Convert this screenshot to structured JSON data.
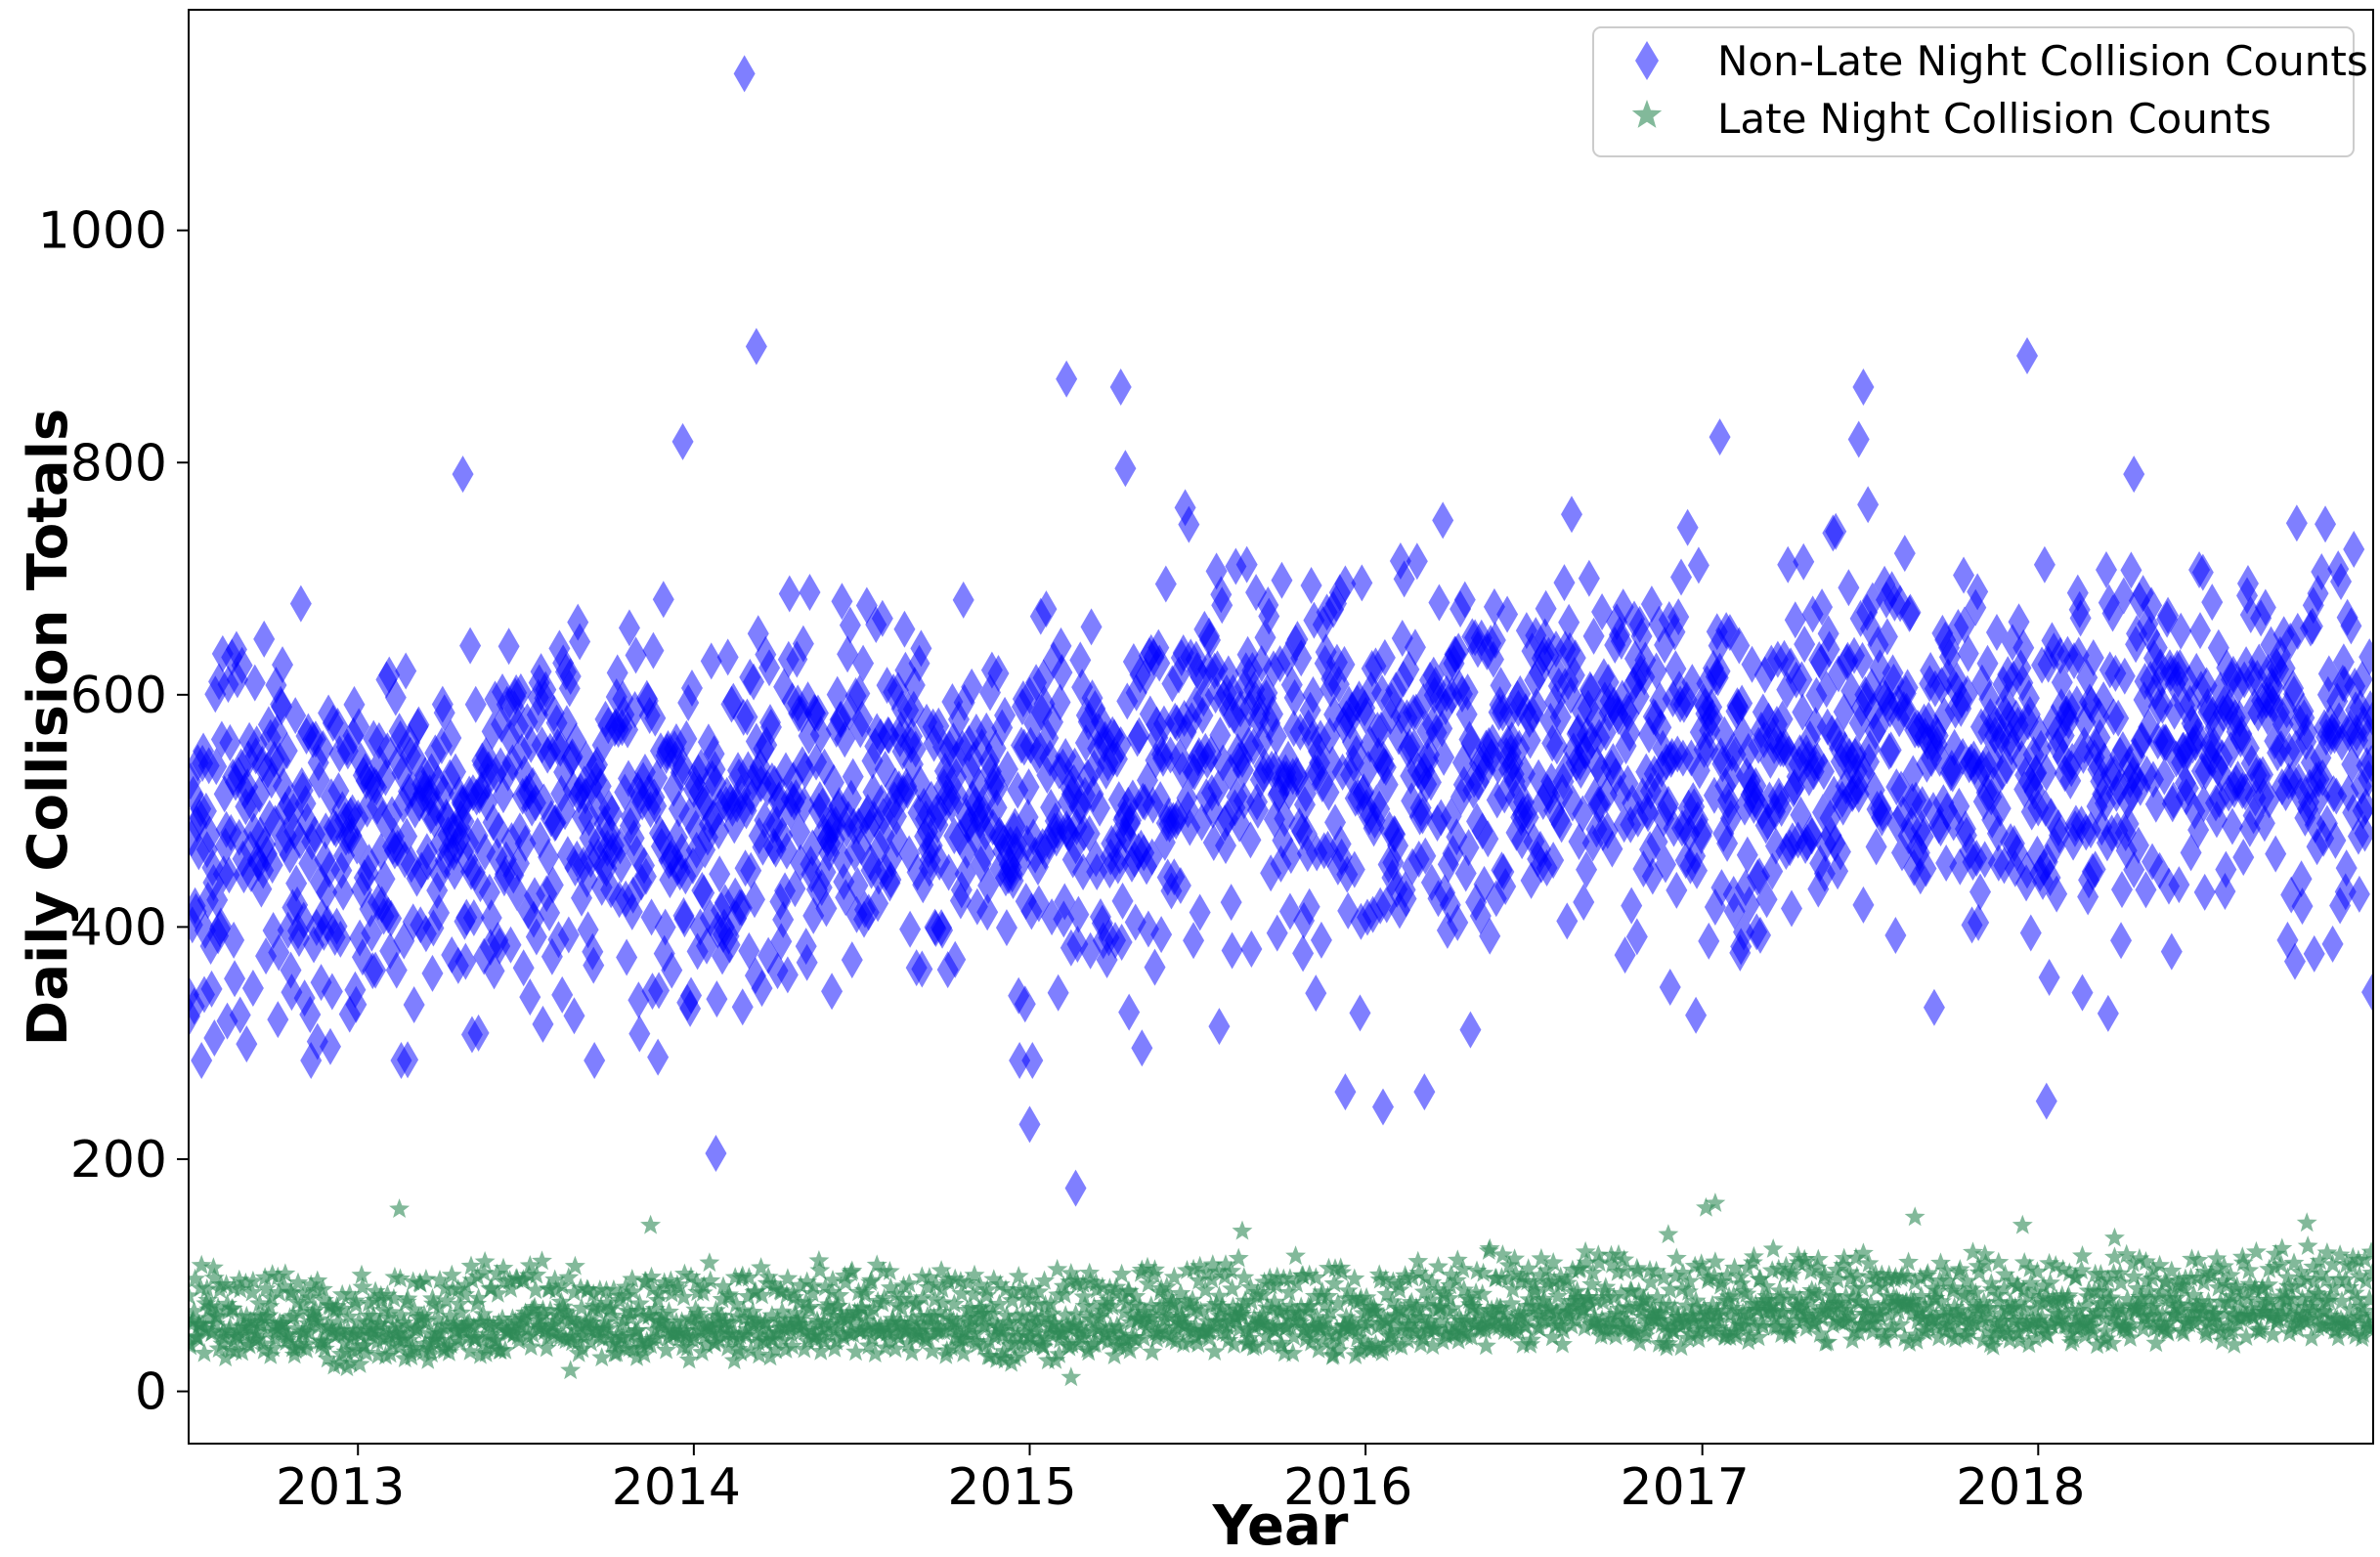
{
  "chart_data": {
    "type": "scatter",
    "title": "",
    "xlabel": "Year",
    "ylabel": "Daily Collision Totals",
    "xlim": [
      "2012-07-01",
      "2018-12-31"
    ],
    "ylim": [
      -45,
      1190
    ],
    "x_ticks": [
      {
        "label": "2013",
        "date": "2013-01-01"
      },
      {
        "label": "2014",
        "date": "2014-01-01"
      },
      {
        "label": "2015",
        "date": "2015-01-01"
      },
      {
        "label": "2016",
        "date": "2016-01-01"
      },
      {
        "label": "2017",
        "date": "2017-01-01"
      },
      {
        "label": "2018",
        "date": "2018-01-01"
      }
    ],
    "y_ticks": [
      0,
      200,
      400,
      600,
      800,
      1000
    ],
    "grid": false,
    "legend_position": "top-right",
    "series": [
      {
        "name": "Non-Late Night Collision Counts",
        "marker": "diamond",
        "color": "#0000ff",
        "opacity": 0.5,
        "seasonal": [
          {
            "date": "2012-07-01",
            "value": 480
          },
          {
            "date": "2012-10-01",
            "value": 500
          },
          {
            "date": "2013-01-01",
            "value": 470
          },
          {
            "date": "2013-04-01",
            "value": 490
          },
          {
            "date": "2013-07-01",
            "value": 520
          },
          {
            "date": "2013-10-01",
            "value": 510
          },
          {
            "date": "2014-01-01",
            "value": 480
          },
          {
            "date": "2014-04-01",
            "value": 500
          },
          {
            "date": "2014-07-01",
            "value": 530
          },
          {
            "date": "2014-10-01",
            "value": 520
          },
          {
            "date": "2015-01-01",
            "value": 490
          },
          {
            "date": "2015-04-01",
            "value": 510
          },
          {
            "date": "2015-07-01",
            "value": 560
          },
          {
            "date": "2015-10-01",
            "value": 550
          },
          {
            "date": "2016-01-01",
            "value": 540
          },
          {
            "date": "2016-04-01",
            "value": 550
          },
          {
            "date": "2016-07-01",
            "value": 580
          },
          {
            "date": "2016-10-01",
            "value": 570
          },
          {
            "date": "2017-01-01",
            "value": 540
          },
          {
            "date": "2017-04-01",
            "value": 540
          },
          {
            "date": "2017-07-01",
            "value": 580
          },
          {
            "date": "2017-10-01",
            "value": 560
          },
          {
            "date": "2018-01-01",
            "value": 550
          },
          {
            "date": "2018-04-01",
            "value": 540
          },
          {
            "date": "2018-07-01",
            "value": 580
          },
          {
            "date": "2018-10-01",
            "value": 570
          },
          {
            "date": "2018-12-31",
            "value": 560
          }
        ],
        "spread": 160,
        "outliers": [
          {
            "date": "2013-04-25",
            "value": 790
          },
          {
            "date": "2013-12-20",
            "value": 818
          },
          {
            "date": "2014-01-25",
            "value": 205
          },
          {
            "date": "2014-02-25",
            "value": 1135
          },
          {
            "date": "2014-03-10",
            "value": 900
          },
          {
            "date": "2015-01-01",
            "value": 230
          },
          {
            "date": "2015-02-10",
            "value": 872
          },
          {
            "date": "2015-02-20",
            "value": 175
          },
          {
            "date": "2015-04-10",
            "value": 865
          },
          {
            "date": "2015-04-15",
            "value": 795
          },
          {
            "date": "2017-01-20",
            "value": 822
          },
          {
            "date": "2017-06-25",
            "value": 865
          },
          {
            "date": "2017-06-20",
            "value": 820
          },
          {
            "date": "2017-12-20",
            "value": 892
          },
          {
            "date": "2018-01-10",
            "value": 250
          },
          {
            "date": "2018-04-15",
            "value": 790
          },
          {
            "date": "2016-01-20",
            "value": 245
          },
          {
            "date": "2015-12-10",
            "value": 258
          },
          {
            "date": "2016-03-05",
            "value": 258
          }
        ]
      },
      {
        "name": "Late Night Collision Counts",
        "marker": "star",
        "color": "#2e8b57",
        "opacity": 0.6,
        "seasonal": [
          {
            "date": "2012-07-01",
            "value": 58
          },
          {
            "date": "2013-01-01",
            "value": 52
          },
          {
            "date": "2013-07-01",
            "value": 60
          },
          {
            "date": "2014-01-01",
            "value": 55
          },
          {
            "date": "2014-07-01",
            "value": 62
          },
          {
            "date": "2015-01-01",
            "value": 55
          },
          {
            "date": "2015-07-01",
            "value": 64
          },
          {
            "date": "2016-01-01",
            "value": 58
          },
          {
            "date": "2016-07-01",
            "value": 72
          },
          {
            "date": "2017-01-01",
            "value": 66
          },
          {
            "date": "2017-07-01",
            "value": 72
          },
          {
            "date": "2018-01-01",
            "value": 66
          },
          {
            "date": "2018-07-01",
            "value": 72
          },
          {
            "date": "2018-12-31",
            "value": 70
          }
        ],
        "spread": 38,
        "outliers": [
          {
            "date": "2013-02-15",
            "value": 157
          },
          {
            "date": "2013-11-15",
            "value": 143
          },
          {
            "date": "2015-08-20",
            "value": 138
          },
          {
            "date": "2016-11-25",
            "value": 135
          },
          {
            "date": "2017-01-05",
            "value": 158
          },
          {
            "date": "2017-01-15",
            "value": 162
          },
          {
            "date": "2017-08-20",
            "value": 150
          },
          {
            "date": "2017-12-15",
            "value": 143
          },
          {
            "date": "2018-03-25",
            "value": 132
          },
          {
            "date": "2018-10-20",
            "value": 145
          },
          {
            "date": "2015-02-15",
            "value": 12
          },
          {
            "date": "2013-08-20",
            "value": 18
          }
        ]
      }
    ]
  }
}
